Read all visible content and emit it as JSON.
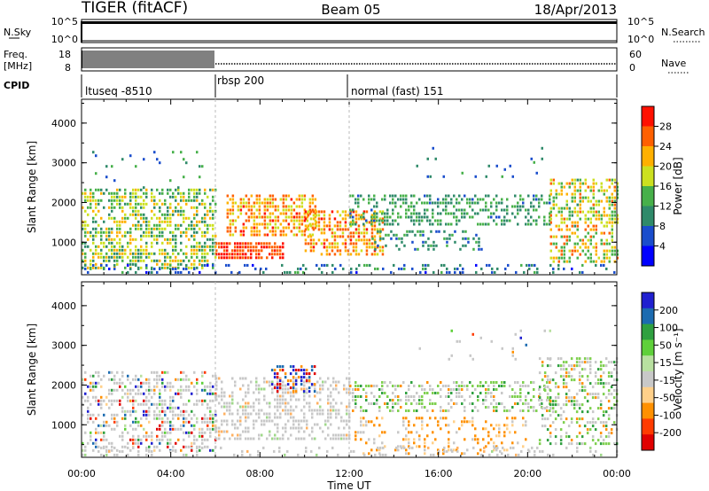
{
  "header": {
    "title": "TIGER (fitACF)",
    "beam": "Beam 05",
    "date": "18/Apr/2013"
  },
  "top_panels": {
    "nsky_label": "N.Sky",
    "nsky_ticks": [
      "10^5",
      "10^0"
    ],
    "nsearch_label": "N.Search",
    "nsearch_ticks": [
      "10^5",
      "10^0"
    ],
    "freq_label_1": "Freq.",
    "freq_label_2": "[MHz]",
    "freq_ticks": [
      "18",
      "8"
    ],
    "nave_label": "Nave",
    "nave_ticks": [
      "60",
      "0"
    ],
    "cpid_label": "CPID"
  },
  "cpid_segments": [
    {
      "name": "ltuseq -8510",
      "start_hour": 0,
      "end_hour": 6
    },
    {
      "name": "rbsp 200",
      "start_hour": 6,
      "end_hour": 12
    },
    {
      "name": "normal (fast) 151",
      "start_hour": 12,
      "end_hour": 24
    }
  ],
  "colors": {
    "power_scale": [
      "#0000ff",
      "#1a4dcc",
      "#2f8a6a",
      "#47b04a",
      "#cce020",
      "#ffb000",
      "#ff6000",
      "#ff1000"
    ],
    "velocity_scale": [
      "#e00000",
      "#ff3b00",
      "#ff9000",
      "#ffd08a",
      "#c8c8c8",
      "#b8e0a0",
      "#5fd03a",
      "#2fa040",
      "#1c6bb0",
      "#2020d0"
    ]
  },
  "chart_data": [
    {
      "type": "heatmap",
      "panel": "power",
      "ylabel": "Slant Range [km]",
      "xlabel": "Time UT",
      "x_range_hours": [
        0,
        24
      ],
      "ylim": [
        180,
        4600
      ],
      "yticks": [
        "4000",
        "3000",
        "2000",
        "1000"
      ],
      "xticks": [
        "00:00",
        "04:00",
        "08:00",
        "12:00",
        "16:00",
        "20:00",
        "00:00"
      ],
      "colorbar_label": "Power [dB]",
      "colorbar_ticks": [
        "28",
        "24",
        "20",
        "16",
        "12",
        "8",
        "4"
      ],
      "scatter_regions": [
        {
          "name": "ltuseq band",
          "t0": 0.0,
          "t1": 6.0,
          "r0": 300,
          "r1": 2350,
          "density": 0.55,
          "level": [
            0.25,
            0.75
          ]
        },
        {
          "name": "ltuseq sparse far",
          "t0": 0.0,
          "t1": 6.0,
          "r0": 2400,
          "r1": 3300,
          "density": 0.05,
          "level": [
            0.1,
            0.5
          ]
        },
        {
          "name": "rbsp near",
          "t0": 6.0,
          "t1": 9.0,
          "r0": 600,
          "r1": 1000,
          "density": 0.85,
          "level": [
            0.8,
            1.0
          ]
        },
        {
          "name": "rbsp rising arc",
          "t0": 6.5,
          "t1": 10.5,
          "r0": 1200,
          "r1": 2200,
          "density": 0.6,
          "level": [
            0.55,
            0.95
          ]
        },
        {
          "name": "noon arcs",
          "t0": 10.0,
          "t1": 13.5,
          "r0": 700,
          "r1": 1800,
          "density": 0.55,
          "level": [
            0.55,
            0.95
          ]
        },
        {
          "name": "afternoon band",
          "t0": 12.0,
          "t1": 21.0,
          "r0": 1400,
          "r1": 2200,
          "density": 0.45,
          "level": [
            0.2,
            0.5
          ]
        },
        {
          "name": "afternoon low",
          "t0": 13.0,
          "t1": 18.0,
          "r0": 800,
          "r1": 1300,
          "density": 0.3,
          "level": [
            0.15,
            0.45
          ]
        },
        {
          "name": "late sparse",
          "t0": 15.0,
          "t1": 21.0,
          "r0": 2600,
          "r1": 3400,
          "density": 0.04,
          "level": [
            0.1,
            0.4
          ]
        },
        {
          "name": "evening echoes",
          "t0": 21.0,
          "t1": 24.0,
          "r0": 500,
          "r1": 2600,
          "density": 0.5,
          "level": [
            0.35,
            0.85
          ]
        },
        {
          "name": "ground scatter base",
          "t0": 0.0,
          "t1": 24.0,
          "r0": 200,
          "r1": 450,
          "density": 0.25,
          "level": [
            0.05,
            0.4
          ]
        }
      ]
    },
    {
      "type": "heatmap",
      "panel": "velocity",
      "ylabel": "Slant Range [km]",
      "xlabel": "Time UT",
      "x_range_hours": [
        0,
        24
      ],
      "ylim": [
        180,
        4600
      ],
      "yticks": [
        "4000",
        "3000",
        "2000",
        "1000"
      ],
      "xticks": [
        "00:00",
        "04:00",
        "08:00",
        "12:00",
        "16:00",
        "20:00",
        "00:00"
      ],
      "colorbar_label": "Velocity [m s⁻¹]",
      "colorbar_ticks": [
        "200",
        "100",
        "50",
        "15",
        "-15",
        "-50",
        "-100",
        "-200"
      ],
      "scatter_regions": [
        {
          "name": "ltuseq band",
          "t0": 0.0,
          "t1": 6.0,
          "r0": 300,
          "r1": 2350,
          "density": 0.45,
          "mode": "mixed"
        },
        {
          "name": "rbsp grey",
          "t0": 6.0,
          "t1": 12.0,
          "r0": 600,
          "r1": 2200,
          "density": 0.45,
          "mode": "grey"
        },
        {
          "name": "cusp blobs",
          "t0": 8.5,
          "t1": 10.5,
          "r0": 1800,
          "r1": 2500,
          "density": 0.45,
          "mode": "strong"
        },
        {
          "name": "noon green",
          "t0": 12.0,
          "t1": 21.0,
          "r0": 1300,
          "r1": 2100,
          "density": 0.4,
          "mode": "greenish"
        },
        {
          "name": "noon orange",
          "t0": 12.0,
          "t1": 20.0,
          "r0": 300,
          "r1": 1200,
          "density": 0.25,
          "mode": "orange"
        },
        {
          "name": "evening grey",
          "t0": 20.5,
          "t1": 24.0,
          "r0": 500,
          "r1": 2700,
          "density": 0.4,
          "mode": "greenish"
        },
        {
          "name": "late sparse",
          "t0": 15.0,
          "t1": 21.0,
          "r0": 2600,
          "r1": 3400,
          "density": 0.04,
          "mode": "mixed"
        },
        {
          "name": "ground scatter base",
          "t0": 0.0,
          "t1": 24.0,
          "r0": 200,
          "r1": 450,
          "density": 0.2,
          "mode": "grey"
        }
      ]
    }
  ]
}
